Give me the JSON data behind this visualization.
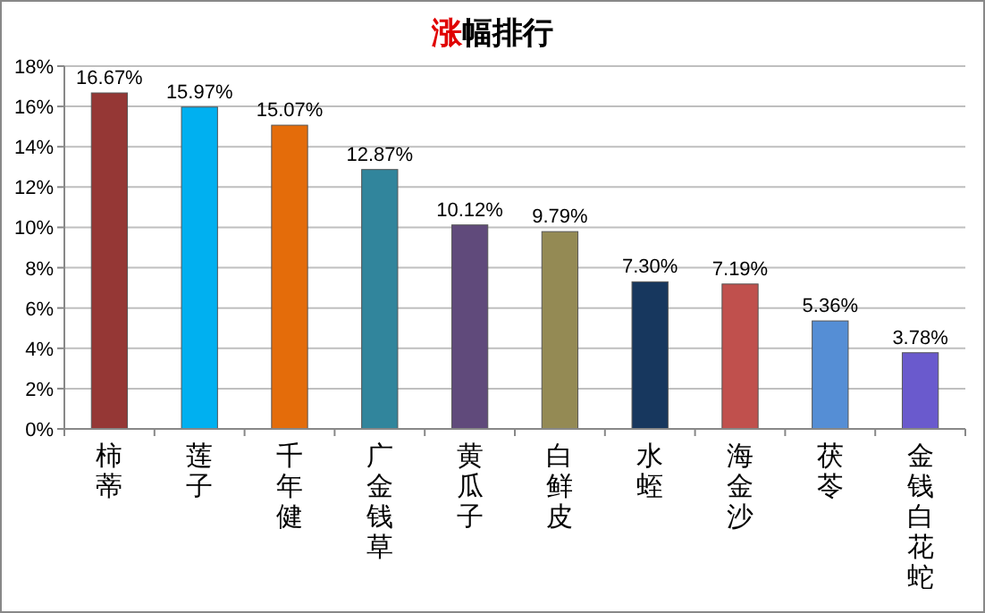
{
  "chart_data": {
    "type": "bar",
    "title": "涨幅排行",
    "categories": [
      "柿蒂",
      "莲子",
      "千年健",
      "广金钱草",
      "黄瓜子",
      "白鲜皮",
      "水蛭",
      "海金沙",
      "茯苓",
      "金钱白花蛇"
    ],
    "values": [
      16.67,
      15.97,
      15.07,
      12.87,
      10.12,
      9.79,
      7.3,
      7.19,
      5.36,
      3.78
    ],
    "value_labels": [
      "16.67%",
      "15.97%",
      "15.07%",
      "12.87%",
      "10.12%",
      "9.79%",
      "7.30%",
      "7.19%",
      "5.36%",
      "3.78%"
    ],
    "colors": [
      "#953735",
      "#00b0f0",
      "#e46c0a",
      "#31859c",
      "#604a7b",
      "#948a54",
      "#17375e",
      "#c0504d",
      "#558ed5",
      "#6a5acd"
    ],
    "ylim": [
      0,
      18
    ],
    "yticks": [
      {
        "value": 0,
        "label": "0%"
      },
      {
        "value": 2,
        "label": "2%"
      },
      {
        "value": 4,
        "label": "4%"
      },
      {
        "value": 6,
        "label": "6%"
      },
      {
        "value": 8,
        "label": "8%"
      },
      {
        "value": 10,
        "label": "10%"
      },
      {
        "value": 12,
        "label": "12%"
      },
      {
        "value": 14,
        "label": "14%"
      },
      {
        "value": 16,
        "label": "16%"
      },
      {
        "value": 18,
        "label": "18%"
      }
    ],
    "grid": "y"
  }
}
